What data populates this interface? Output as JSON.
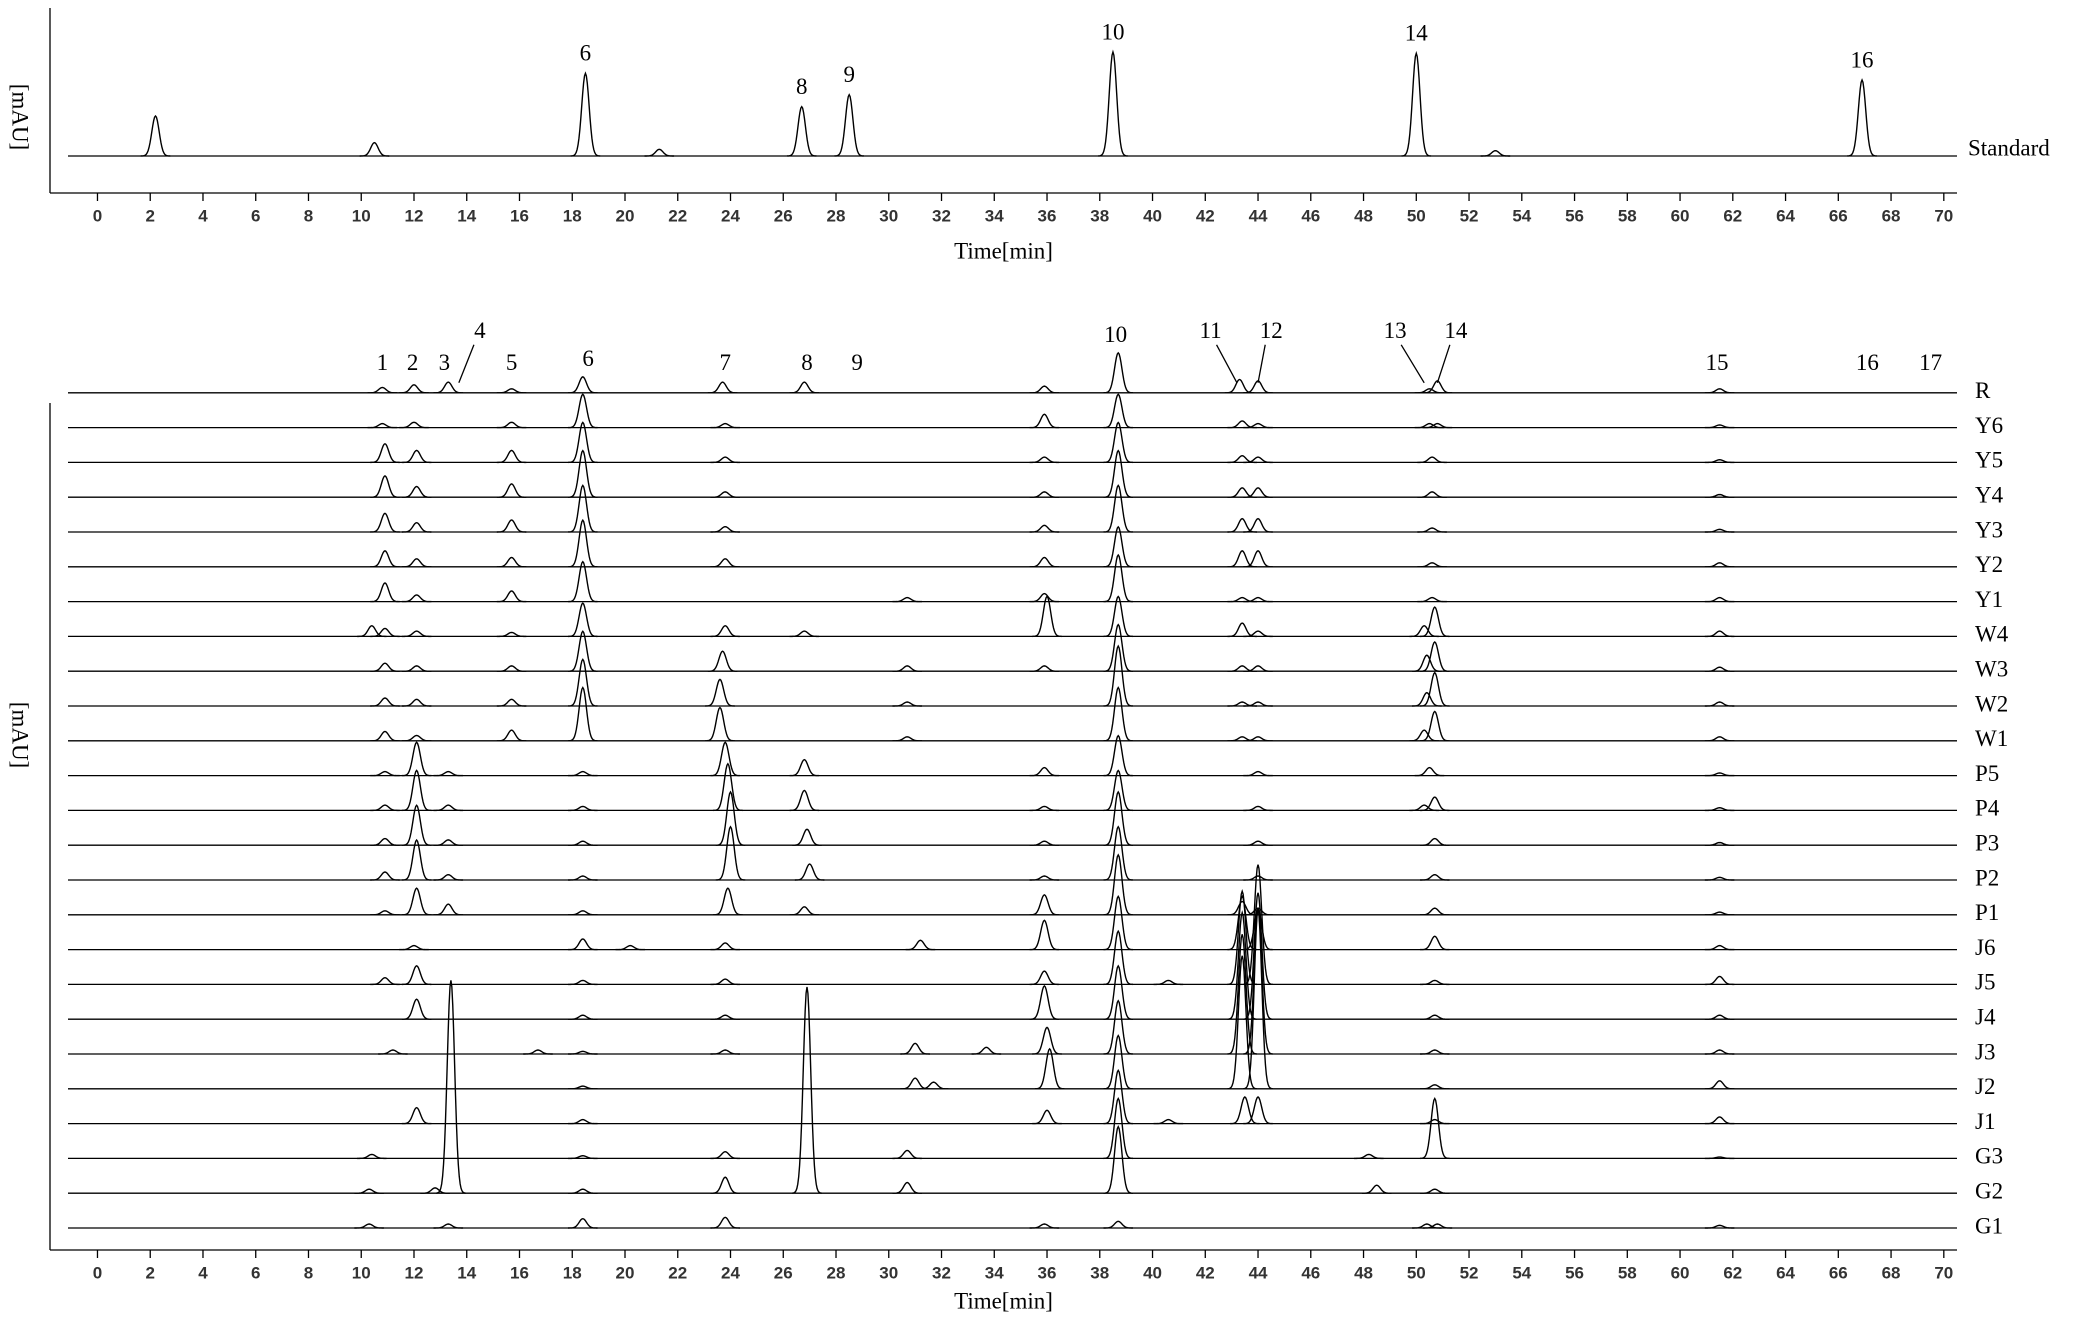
{
  "chart_data": [
    {
      "type": "line",
      "ylabel": "[mAU]",
      "xlabel": "Time[min]",
      "xlim": [
        -1.8,
        70.5
      ],
      "xticks": [
        0,
        2,
        4,
        6,
        8,
        10,
        12,
        14,
        16,
        18,
        20,
        22,
        24,
        26,
        28,
        30,
        32,
        34,
        36,
        38,
        40,
        42,
        44,
        46,
        48,
        50,
        52,
        54,
        56,
        58,
        60,
        62,
        64,
        66,
        68,
        70
      ],
      "ylim": [
        0,
        111
      ],
      "series": [
        {
          "name": "Standard",
          "color": "#000000",
          "x": [
            2.2,
            10.5,
            18.5,
            21.3,
            26.7,
            28.5,
            38.5,
            50,
            53,
            66.9
          ],
          "values": [
            30,
            10,
            62,
            5,
            37,
            46,
            78,
            77,
            4,
            57
          ],
          "peak_labels": [
            null,
            null,
            "6",
            null,
            "8",
            "9",
            "10",
            "14",
            null,
            "16"
          ]
        }
      ]
    },
    {
      "type": "line",
      "ylabel": "[mAU]",
      "xlabel": "Time[min]",
      "xlim": [
        -1.8,
        70.5
      ],
      "xticks": [
        0,
        2,
        4,
        6,
        8,
        10,
        12,
        14,
        16,
        18,
        20,
        22,
        24,
        26,
        28,
        30,
        32,
        34,
        36,
        38,
        40,
        42,
        44,
        46,
        48,
        50,
        52,
        54,
        56,
        58,
        60,
        62,
        64,
        66,
        68,
        70
      ],
      "ylim": [
        0,
        620
      ],
      "annotations": [
        {
          "text": "1",
          "x": 10.8
        },
        {
          "text": "2",
          "x": 11.95
        },
        {
          "text": "3",
          "x": 13.15
        },
        {
          "text": "4",
          "x": 14.5,
          "arrow_x": 13.7
        },
        {
          "text": "5",
          "x": 15.7
        },
        {
          "text": "6",
          "x": 18.6
        },
        {
          "text": "7",
          "x": 23.8
        },
        {
          "text": "8",
          "x": 26.9
        },
        {
          "text": "9",
          "x": 28.8
        },
        {
          "text": "10",
          "x": 38.6
        },
        {
          "text": "11",
          "x": 42.2,
          "arrow_x": 43.2
        },
        {
          "text": "12",
          "x": 44.5,
          "arrow_x": 44.0
        },
        {
          "text": "13",
          "x": 49.2,
          "arrow_x": 50.3
        },
        {
          "text": "14",
          "x": 51.5,
          "arrow_x": 50.8
        },
        {
          "text": "15",
          "x": 61.4
        },
        {
          "text": "16",
          "x": 67.1
        },
        {
          "text": "17",
          "x": 69.5
        }
      ],
      "series": [
        {
          "name": "R",
          "color": "#000000",
          "x": [
            10.8,
            12,
            13.3,
            15.7,
            18.4,
            23.7,
            26.8,
            35.9,
            38.7,
            43.3,
            44,
            50.5,
            50.8,
            61.5
          ],
          "values": [
            4,
            6,
            8,
            3,
            12,
            8,
            8,
            5,
            30,
            10,
            9,
            3,
            9,
            3
          ]
        },
        {
          "name": "Y6",
          "color": "#000000",
          "x": [
            10.8,
            12,
            15.7,
            18.4,
            23.8,
            35.9,
            38.7,
            43.4,
            44,
            50.5,
            50.8,
            61.5
          ],
          "values": [
            3,
            4,
            4,
            25,
            3,
            10,
            25,
            5,
            3,
            3,
            3,
            2
          ]
        },
        {
          "name": "Y5",
          "color": "#000000",
          "x": [
            10.9,
            12.1,
            15.7,
            18.4,
            23.8,
            35.9,
            38.7,
            43.4,
            44,
            50.6,
            61.5
          ],
          "values": [
            14,
            9,
            9,
            30,
            4,
            4,
            30,
            5,
            4,
            4,
            2
          ]
        },
        {
          "name": "Y4",
          "color": "#000000",
          "x": [
            10.9,
            12.1,
            15.7,
            18.4,
            23.8,
            35.9,
            38.7,
            43.4,
            44,
            50.6,
            61.5
          ],
          "values": [
            16,
            8,
            10,
            35,
            4,
            4,
            35,
            7,
            7,
            4,
            2
          ]
        },
        {
          "name": "Y3",
          "color": "#000000",
          "x": [
            10.9,
            12.1,
            15.7,
            18.4,
            23.8,
            35.9,
            38.7,
            43.4,
            44,
            50.6,
            61.5
          ],
          "values": [
            14,
            7,
            9,
            35,
            4,
            5,
            35,
            10,
            10,
            3,
            2
          ]
        },
        {
          "name": "Y2",
          "color": "#000000",
          "x": [
            10.9,
            12.1,
            15.7,
            18.4,
            23.8,
            35.9,
            38.7,
            43.4,
            44,
            50.6,
            61.5
          ],
          "values": [
            12,
            6,
            7,
            35,
            6,
            7,
            30,
            12,
            12,
            3,
            3
          ]
        },
        {
          "name": "Y1",
          "color": "#000000",
          "x": [
            10.9,
            12.1,
            15.7,
            18.4,
            30.7,
            35.9,
            38.7,
            43.4,
            44,
            50.6,
            61.5
          ],
          "values": [
            14,
            5,
            8,
            30,
            3,
            6,
            35,
            3,
            3,
            3,
            3
          ]
        },
        {
          "name": "W4",
          "color": "#000000",
          "x": [
            10.4,
            10.9,
            12.1,
            15.7,
            18.4,
            23.8,
            26.8,
            36,
            38.7,
            43.4,
            44,
            50.3,
            50.7,
            61.5
          ],
          "values": [
            8,
            6,
            4,
            3,
            25,
            8,
            4,
            30,
            30,
            10,
            4,
            8,
            22,
            4
          ]
        },
        {
          "name": "W3",
          "color": "#000000",
          "x": [
            10.9,
            12.1,
            15.7,
            18.4,
            23.7,
            30.7,
            35.9,
            38.7,
            43.4,
            44,
            50.4,
            50.7,
            61.5
          ],
          "values": [
            6,
            4,
            4,
            30,
            15,
            4,
            4,
            35,
            4,
            4,
            12,
            22,
            3
          ]
        },
        {
          "name": "W2",
          "color": "#000000",
          "x": [
            10.9,
            12.1,
            15.7,
            18.4,
            23.6,
            30.7,
            38.7,
            43.4,
            44,
            50.4,
            50.7,
            61.5
          ],
          "values": [
            6,
            5,
            5,
            35,
            20,
            3,
            45,
            3,
            3,
            10,
            25,
            3
          ]
        },
        {
          "name": "W1",
          "color": "#000000",
          "x": [
            10.9,
            12.1,
            15.7,
            18.4,
            23.6,
            30.7,
            38.7,
            43.4,
            44,
            50.3,
            50.7,
            61.5
          ],
          "values": [
            7,
            4,
            8,
            40,
            25,
            3,
            40,
            3,
            3,
            8,
            22,
            3
          ]
        },
        {
          "name": "P5",
          "color": "#000000",
          "x": [
            10.9,
            12.1,
            13.3,
            18.4,
            23.8,
            26.8,
            35.9,
            38.7,
            44,
            50.5,
            61.5
          ],
          "values": [
            3,
            25,
            3,
            3,
            25,
            12,
            6,
            30,
            3,
            6,
            2
          ]
        },
        {
          "name": "P4",
          "color": "#000000",
          "x": [
            10.9,
            12.1,
            13.3,
            18.4,
            23.9,
            26.8,
            35.9,
            38.7,
            44,
            50.3,
            50.7,
            61.5
          ],
          "values": [
            4,
            30,
            4,
            3,
            35,
            15,
            3,
            30,
            3,
            4,
            10,
            2
          ]
        },
        {
          "name": "P3",
          "color": "#000000",
          "x": [
            10.9,
            12.1,
            13.3,
            18.4,
            24,
            26.9,
            35.9,
            38.7,
            44,
            50.7,
            61.5
          ],
          "values": [
            5,
            30,
            4,
            3,
            40,
            12,
            3,
            40,
            3,
            5,
            2
          ]
        },
        {
          "name": "P2",
          "color": "#000000",
          "x": [
            10.9,
            12.1,
            13.3,
            18.4,
            24,
            27,
            35.9,
            38.7,
            44,
            50.7,
            61.5
          ],
          "values": [
            6,
            30,
            4,
            3,
            40,
            12,
            3,
            40,
            3,
            4,
            2
          ]
        },
        {
          "name": "P1",
          "color": "#000000",
          "x": [
            10.9,
            12.1,
            13.3,
            18.4,
            23.9,
            26.8,
            35.9,
            38.7,
            43.4,
            44,
            50.7,
            61.5
          ],
          "values": [
            3,
            20,
            8,
            3,
            20,
            6,
            15,
            45,
            10,
            5,
            5,
            2
          ]
        },
        {
          "name": "J6",
          "color": "#000000",
          "x": [
            12,
            18.4,
            20.2,
            23.8,
            31.2,
            35.9,
            38.7,
            43.4,
            44,
            50.7,
            61.5
          ],
          "values": [
            3,
            8,
            3,
            5,
            7,
            22,
            40,
            40,
            30,
            10,
            3
          ]
        },
        {
          "name": "J5",
          "color": "#000000",
          "x": [
            10.9,
            12.1,
            18.4,
            23.8,
            35.9,
            38.7,
            40.6,
            43.4,
            44,
            50.7,
            61.5
          ],
          "values": [
            5,
            14,
            3,
            4,
            10,
            40,
            3,
            70,
            90,
            3,
            6
          ]
        },
        {
          "name": "J4",
          "color": "#000000",
          "x": [
            12.1,
            18.4,
            23.8,
            35.9,
            38.7,
            43.4,
            44,
            50.7,
            61.5
          ],
          "values": [
            15,
            3,
            3,
            25,
            40,
            80,
            95,
            3,
            3
          ]
        },
        {
          "name": "J3",
          "color": "#000000",
          "x": [
            11.2,
            16.7,
            18.4,
            23.8,
            31,
            33.7,
            36,
            38.7,
            43.4,
            44,
            50.7,
            61.5
          ],
          "values": [
            3,
            3,
            2,
            3,
            8,
            5,
            20,
            40,
            90,
            110,
            3,
            3
          ]
        },
        {
          "name": "J2",
          "color": "#000000",
          "x": [
            18.4,
            31,
            31.7,
            36.1,
            38.7,
            43.4,
            44,
            50.7,
            61.5
          ],
          "values": [
            2,
            8,
            5,
            30,
            40,
            100,
            135,
            3,
            6
          ]
        },
        {
          "name": "J1",
          "color": "#000000",
          "x": [
            12.1,
            18.4,
            36,
            38.7,
            40.6,
            43.5,
            44,
            50.7,
            61.5
          ],
          "values": [
            12,
            3,
            10,
            40,
            3,
            20,
            20,
            3,
            5
          ]
        },
        {
          "name": "G3",
          "color": "#000000",
          "x": [
            10.4,
            18.4,
            23.8,
            30.7,
            38.7,
            48.2,
            50.7,
            61.5
          ],
          "values": [
            3,
            2,
            5,
            6,
            45,
            3,
            45,
            1
          ]
        },
        {
          "name": "G2",
          "color": "#000000",
          "x": [
            10.3,
            12.8,
            13.4,
            18.4,
            23.8,
            26.9,
            30.7,
            38.7,
            48.5,
            50.7
          ],
          "values": [
            3,
            4,
            160,
            3,
            12,
            155,
            8,
            50,
            6,
            3
          ]
        },
        {
          "name": "G1",
          "color": "#000000",
          "x": [
            10.3,
            13.3,
            18.4,
            23.8,
            35.9,
            38.7,
            50.4,
            50.8,
            61.5
          ],
          "values": [
            3,
            3,
            7,
            8,
            3,
            5,
            3,
            3,
            2
          ]
        }
      ]
    }
  ]
}
